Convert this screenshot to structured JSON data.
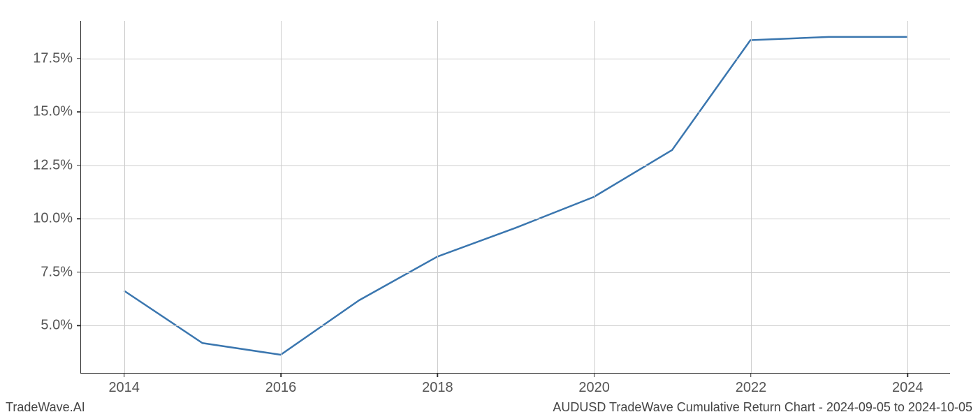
{
  "footer": {
    "left": "TradeWave.AI",
    "right": "AUDUSD TradeWave Cumulative Return Chart - 2024-09-05 to 2024-10-05"
  },
  "chart": {
    "type": "line",
    "background_color": "#ffffff",
    "grid_color": "#cccccc",
    "axis_color": "#333333",
    "tick_label_color": "#555555",
    "tick_label_fontsize": 20,
    "footer_fontsize": 18,
    "line_color": "#3a76af",
    "line_width": 2.5,
    "xlim": [
      2013.45,
      2024.55
    ],
    "ylim": [
      2.75,
      19.25
    ],
    "x_ticks": [
      2014,
      2016,
      2018,
      2020,
      2022,
      2024
    ],
    "x_tick_labels": [
      "2014",
      "2016",
      "2018",
      "2020",
      "2022",
      "2024"
    ],
    "y_ticks": [
      5.0,
      7.5,
      10.0,
      12.5,
      15.0,
      17.5
    ],
    "y_tick_labels": [
      "5.0%",
      "7.5%",
      "10.0%",
      "12.5%",
      "15.0%",
      "17.5%"
    ],
    "series": {
      "x": [
        2014,
        2015,
        2016,
        2017,
        2018,
        2019,
        2020,
        2021,
        2022,
        2023,
        2024
      ],
      "y": [
        6.6,
        4.15,
        3.6,
        6.15,
        8.2,
        9.55,
        11.0,
        13.2,
        18.35,
        18.5,
        18.5
      ]
    }
  }
}
